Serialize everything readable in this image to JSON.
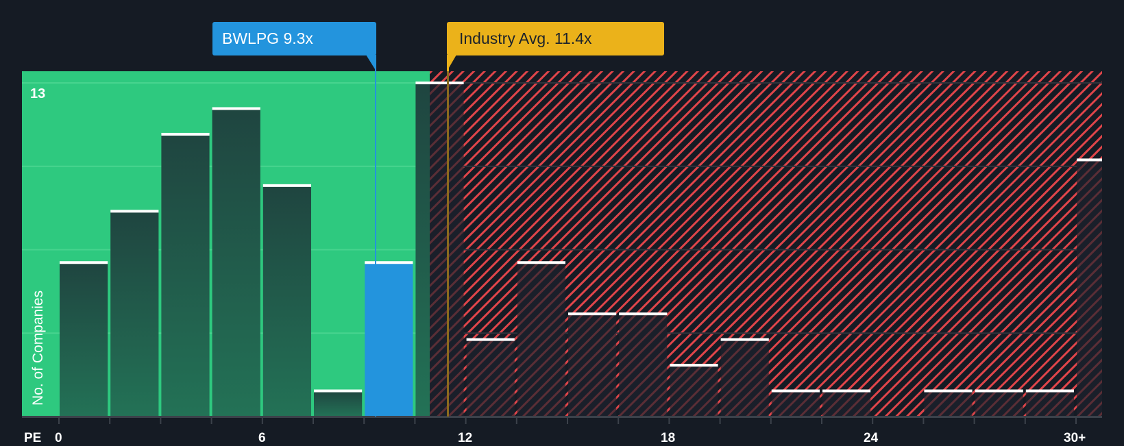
{
  "chart_data": {
    "type": "bar",
    "title": "",
    "xlabel": "PE",
    "ylabel": "No. of Companies",
    "bin_width": 1.5,
    "categories": [
      "0-1.5",
      "1.5-3",
      "3-4.5",
      "4.5-6",
      "6-7.5",
      "7.5-9",
      "9-10.5",
      "10.5-12",
      "12-13.5",
      "13.5-15",
      "15-16.5",
      "16.5-18",
      "18-19.5",
      "19.5-21",
      "21-22.5",
      "22.5-24",
      "24-25.5",
      "25.5-27",
      "27-28.5",
      "28.5-30",
      "30+"
    ],
    "values": [
      6,
      8,
      11,
      12,
      9,
      1,
      6,
      13,
      3,
      6,
      4,
      4,
      2,
      3,
      1,
      1,
      0,
      1,
      1,
      1,
      10
    ],
    "highlight_index": 6,
    "x_ticks": [
      "0",
      "6",
      "12",
      "18",
      "24",
      "30+"
    ],
    "y_max_label": "13",
    "ylim": [
      0,
      13.5
    ],
    "grid": true,
    "markers": [
      {
        "name": "company",
        "label": "BWLPG 9.3x",
        "value": 9.3,
        "color": "#2394dd"
      },
      {
        "name": "industry",
        "label": "Industry Avg. 11.4x",
        "value": 11.4,
        "color": "#ebb21a"
      }
    ]
  },
  "labels": {
    "company_callout": "BWLPG 9.3x",
    "industry_callout": "Industry Avg. 11.4x",
    "y_axis_title": "No. of Companies",
    "x_axis_title": "PE",
    "y_top_value": "13",
    "x_tick_0": "0",
    "x_tick_6": "6",
    "x_tick_12": "12",
    "x_tick_18": "18",
    "x_tick_24": "24",
    "x_tick_30": "30+"
  },
  "colors": {
    "background": "#151b24",
    "undervalued_zone": "#2ec97f",
    "bar_dark_top": "#1f4540",
    "bar_dark_bottom": "#237256",
    "company_bar": "#2394dd",
    "hatch_red": "#e0454a",
    "industry_line": "#ebb21a",
    "bar_cap": "#ffffff"
  }
}
